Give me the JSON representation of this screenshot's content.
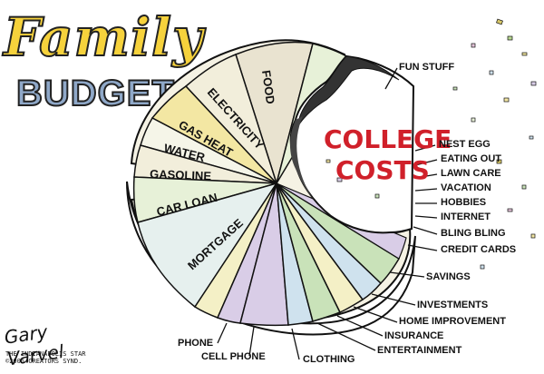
{
  "title": {
    "line1": "Family",
    "line2": "BUDGET"
  },
  "signature": "Gary Varvel",
  "credit": {
    "line1": "THE INDIANAPOLIS STAR",
    "line2": "©2005 CREATORS SYND."
  },
  "bite_label": {
    "line1": "COLLEGE",
    "line2": "COSTS"
  },
  "slice_labels": {
    "food": "FOOD",
    "electricity": "ELECTRICITY",
    "gas_heat": "GAS HEAT",
    "water": "WATER",
    "gasoline": "GASOLINE",
    "car_loan": "CAR LOAN",
    "mortgage": "MORTGAGE"
  },
  "callouts": {
    "fun_stuff": "FUN STUFF",
    "nest_egg": "NEST EGG",
    "eating_out": "EATING OUT",
    "lawn_care": "LAWN CARE",
    "vacation": "VACATION",
    "hobbies": "HOBBIES",
    "internet": "INTERNET",
    "bling_bling": "BLING BLING",
    "credit_cards": "CREDIT CARDS",
    "savings": "SAVINGS",
    "investments": "INVESTMENTS",
    "home_improvement": "HOME IMPROVEMENT",
    "insurance": "INSURANCE",
    "entertainment": "ENTERTAINMENT",
    "phone": "PHONE",
    "cell_phone": "CELL PHONE",
    "clothing": "CLOTHING"
  },
  "colors": {
    "food": "#e9e3d0",
    "electricity": "#f2eedb",
    "gas_heat": "#f3e7a3",
    "water": "#f5f5e8",
    "gasoline": "#f2eedb",
    "car_loan": "#e7f1d8",
    "mortgage": "#e6f0ee",
    "wedge_purple": "#d9cde7",
    "wedge_green": "#c9e2b9",
    "wedge_blue": "#cfe2ee",
    "wedge_yellow": "#f4f0c6",
    "college_red": "#d0202a",
    "rim": "#ffffff",
    "ink": "#111111"
  }
}
